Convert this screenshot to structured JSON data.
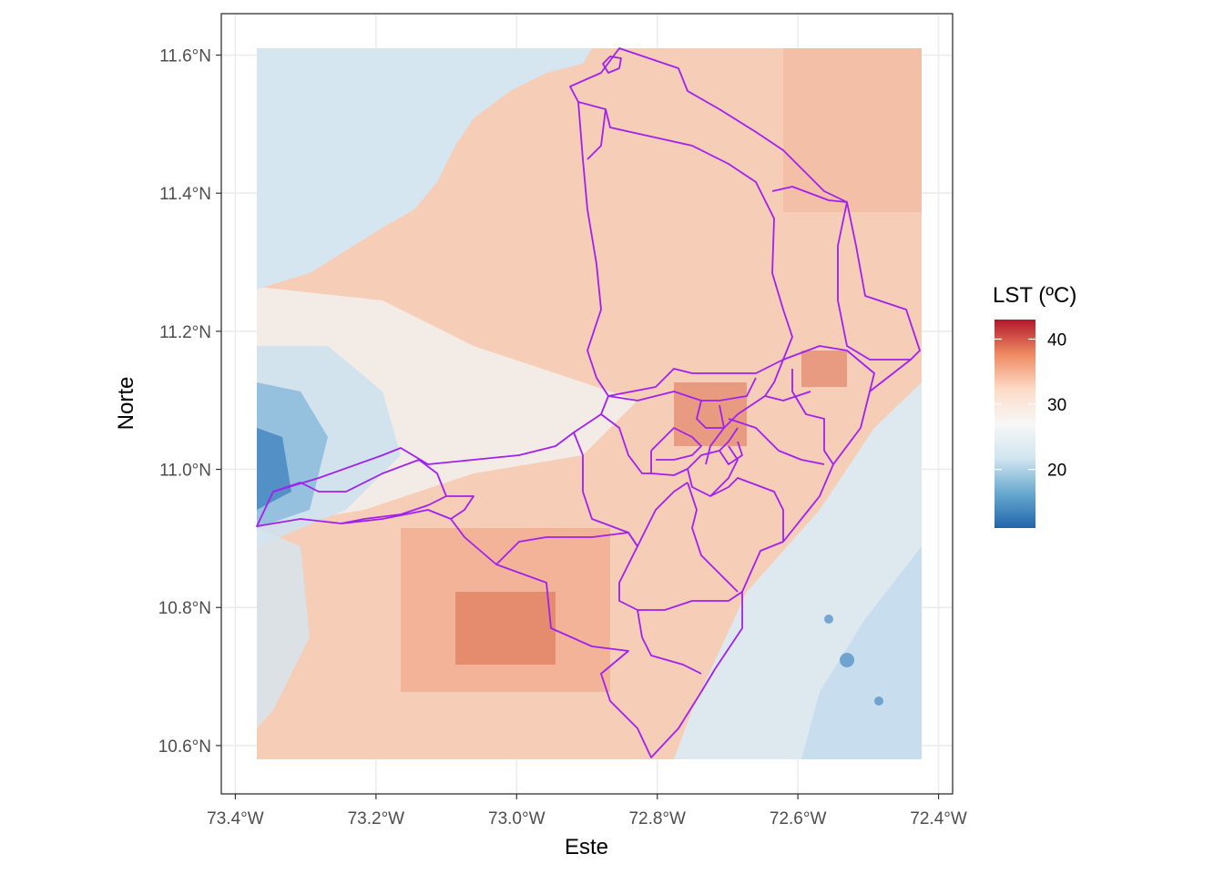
{
  "chart_data": {
    "type": "heatmap",
    "subtype": "raster-map",
    "title": "",
    "xlabel": "Este",
    "ylabel": "Norte",
    "x_ticks": [
      "73.4°W",
      "73.2°W",
      "73.0°W",
      "72.8°W",
      "72.6°W",
      "72.4°W"
    ],
    "y_ticks": [
      "11.6°N",
      "11.4°N",
      "11.2°N",
      "11.0°N",
      "10.8°N",
      "10.6°N"
    ],
    "x_tick_values": [
      -73.4,
      -73.2,
      -73.0,
      -72.8,
      -72.6,
      -72.4
    ],
    "y_tick_values": [
      11.6,
      11.4,
      11.2,
      11.0,
      10.8,
      10.6
    ],
    "xlim": [
      -73.42,
      -72.38
    ],
    "ylim": [
      10.53,
      11.66
    ],
    "raster_extent": {
      "lon": [
        -73.38,
        -72.42
      ],
      "lat": [
        10.58,
        11.61
      ]
    },
    "grid": true,
    "legend": {
      "title": "LST (ºC)",
      "placement": "right",
      "labels": [
        "40",
        "30",
        "20"
      ],
      "values": [
        40,
        30,
        20
      ],
      "range": [
        11,
        43
      ],
      "palette": [
        "#2166ac",
        "#67a9cf",
        "#d1e5f0",
        "#f7f7f7",
        "#fddbc7",
        "#ef8a62",
        "#b2182b"
      ]
    },
    "colors": {
      "boundary": "#a020f0",
      "sea": "#d6e6f0",
      "panel_border": "#333333",
      "grid": "#ebebeb"
    }
  }
}
